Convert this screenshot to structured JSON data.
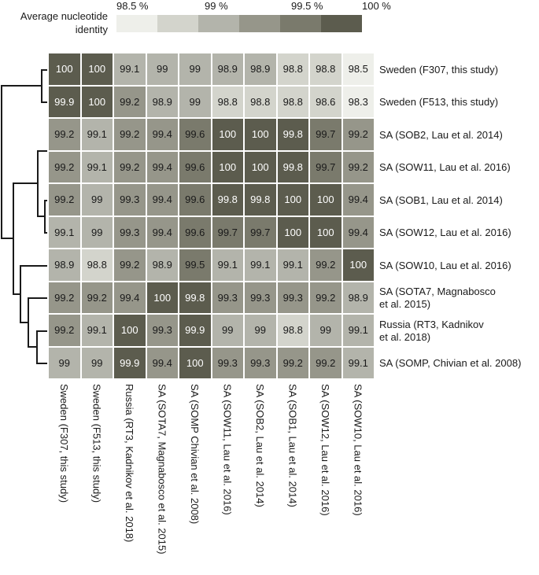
{
  "legend": {
    "title": "Average nucleotide identity",
    "ticks": [
      "98.5 %",
      "99 %",
      "99.5 %",
      "100 %"
    ],
    "colors": [
      "#eeefea",
      "#d3d4cc",
      "#b3b4ab",
      "#96968a",
      "#7a7a6c",
      "#5c5c4e"
    ]
  },
  "chart_data": {
    "type": "heatmap",
    "title": "Average nucleotide identity",
    "row_labels": [
      "Sweden (F307, this study)",
      "Sweden (F513, this study)",
      "SA (SOB2, Lau et al. 2014)",
      "SA (SOW11, Lau et al. 2016)",
      "SA (SOB1, Lau et al. 2014)",
      "SA (SOW12, Lau et al. 2016)",
      "SA (SOW10, Lau et al. 2016)",
      "SA (SOTA7, Magnabosco\net al. 2015)",
      "Russia (RT3, Kadnikov\net al. 2018)",
      "SA (SOMP, Chivian et al. 2008)"
    ],
    "col_labels": [
      "Sweden (F307, this study)",
      "Sweden (F513, this study)",
      "Russia (RT3, Kadnikov et al. 2018)",
      "SA (SOTA7, Magnabosco et al. 2015)",
      "SA (SOMP Chivian et al. 2008)",
      "SA (SOW11, Lau et al. 2016)",
      "SA (SOB2, Lau et al. 2014)",
      "SA (SOB1, Lau et al. 2014)",
      "SA (SOW12, Lau et al. 2016)",
      "SA (SOW10, Lau et al. 2016)"
    ],
    "values": [
      [
        100,
        100,
        99.1,
        99,
        99,
        98.9,
        98.9,
        98.8,
        98.8,
        98.5
      ],
      [
        99.9,
        100,
        99.2,
        98.9,
        99,
        98.8,
        98.8,
        98.8,
        98.6,
        98.3
      ],
      [
        99.2,
        99.1,
        99.2,
        99.4,
        99.6,
        100,
        100,
        99.8,
        99.7,
        99.2
      ],
      [
        99.2,
        99.1,
        99.2,
        99.4,
        99.6,
        100,
        100,
        99.8,
        99.7,
        99.2
      ],
      [
        99.2,
        99,
        99.3,
        99.4,
        99.6,
        99.8,
        99.8,
        100,
        100,
        99.4
      ],
      [
        99.1,
        99,
        99.3,
        99.4,
        99.6,
        99.7,
        99.7,
        100,
        100,
        99.4
      ],
      [
        98.9,
        98.8,
        99.2,
        98.9,
        99.5,
        99.1,
        99.1,
        99.1,
        99.2,
        100
      ],
      [
        99.2,
        99.2,
        99.4,
        100,
        99.8,
        99.3,
        99.3,
        99.3,
        99.2,
        98.9
      ],
      [
        99.2,
        99.1,
        100,
        99.3,
        99.9,
        99,
        99,
        98.8,
        99,
        99.1
      ],
      [
        99,
        99,
        99.9,
        99.4,
        100,
        99.3,
        99.3,
        99.2,
        99.2,
        99.1
      ]
    ],
    "colorscale": {
      "ticks": [
        98.5,
        99,
        99.5,
        100
      ],
      "tick_labels": [
        "98.5 %",
        "99 %",
        "99.5 %",
        "100 %"
      ],
      "colors": [
        "#eeefea",
        "#d3d4cc",
        "#b3b4ab",
        "#96968a",
        "#7a7a6c",
        "#5c5c4e"
      ]
    },
    "dendrogram": "row dendrogram on left; clusters: (F307,F513); ((SOB2,SOW11),(SOB1,SOW12)); (SOW10,(SOTA7,(RT3,SOMP)))",
    "xlabel": "",
    "ylabel": ""
  }
}
